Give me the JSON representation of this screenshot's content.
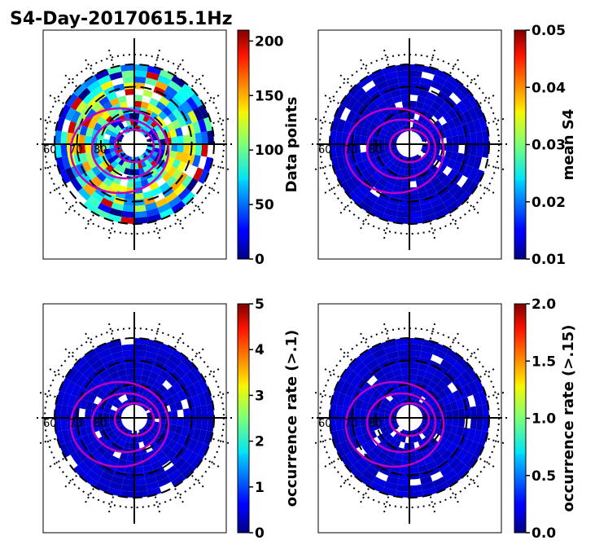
{
  "chart_data": {
    "title": "S4-Day-20170615.1Hz",
    "type": "heatmap",
    "panels": [
      {
        "id": "data-points",
        "colorbar_label": "Data points",
        "colorbar_range": [
          0,
          210
        ],
        "colorbar_ticks": [
          "0",
          "50",
          "100",
          "150",
          "200"
        ],
        "colorbar_tick_values": [
          0,
          50,
          100,
          150,
          200
        ],
        "pattern": "high",
        "left_labels": [
          "60",
          "70",
          "80"
        ]
      },
      {
        "id": "mean-s4",
        "colorbar_label": "mean S4",
        "colorbar_range": [
          0.01,
          0.05
        ],
        "colorbar_ticks": [
          "0.01",
          "0.02",
          "0.03",
          "0.04",
          "0.05"
        ],
        "colorbar_tick_values": [
          0.01,
          0.02,
          0.03,
          0.04,
          0.05
        ],
        "pattern": "low",
        "left_labels": [
          "60",
          "70",
          "80"
        ]
      },
      {
        "id": "occurrence-rate-1",
        "colorbar_label": "occurrence rate (>.1)",
        "colorbar_range": [
          0,
          5
        ],
        "colorbar_ticks": [
          "0",
          "1",
          "2",
          "3",
          "4",
          "5"
        ],
        "colorbar_tick_values": [
          0,
          1,
          2,
          3,
          4,
          5
        ],
        "pattern": "low",
        "left_labels": [
          "60",
          "70",
          "80"
        ]
      },
      {
        "id": "occurrence-rate-15",
        "colorbar_label": "occurrence rate (>.15)",
        "colorbar_range": [
          0,
          2
        ],
        "colorbar_ticks": [
          "0.0",
          "0.5",
          "1.0",
          "1.5",
          "2.0"
        ],
        "colorbar_tick_values": [
          0,
          0.5,
          1.0,
          1.5,
          2.0
        ],
        "pattern": "low",
        "left_labels": [
          "60",
          "70",
          "80"
        ]
      }
    ],
    "colormap": "jet",
    "colors": {
      "ring_line": "#000000",
      "magnetic_contour": "#c000c0",
      "low_cell": "#0a1aa8",
      "background": "#ffffff"
    }
  }
}
